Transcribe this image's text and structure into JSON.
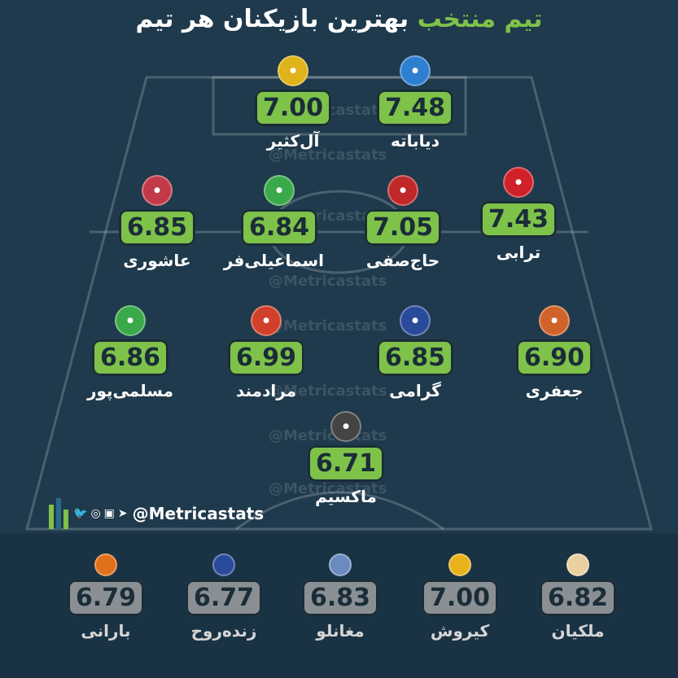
{
  "title": {
    "highlight": "تیم منتخب",
    "rest": "بهترین بازیکنان هر تیم"
  },
  "watermark": "@Metricastats",
  "handle": "@Metricastats",
  "social_icons": [
    "twitter-icon",
    "globe-icon",
    "instagram-icon",
    "telegram-icon"
  ],
  "starters": [
    {
      "name": "دیاباته",
      "score": "7.48",
      "club_logo": "esteghlal-logo-icon",
      "color": "#2f7fd0"
    },
    {
      "name": "آل‌کثیر",
      "score": "7.00",
      "club_logo": "sanat-naft-logo-icon",
      "color": "#e0b21b"
    },
    {
      "name": "ترابی",
      "score": "7.43",
      "club_logo": "persepolis-logo-icon",
      "color": "#d0202a"
    },
    {
      "name": "حاج‌صفی",
      "score": "7.05",
      "club_logo": "tractor-logo-icon",
      "color": "#c0282a"
    },
    {
      "name": "اسماعیلی‌فر",
      "score": "6.84",
      "club_logo": "zob-ahan-logo-icon",
      "color": "#3aa94a"
    },
    {
      "name": "عاشوری",
      "score": "6.85",
      "club_logo": "mes-rafsanjan-logo-icon",
      "color": "#c23a4a"
    },
    {
      "name": "جعفری",
      "score": "6.90",
      "club_logo": "foolad-logo-icon",
      "color": "#d0632a"
    },
    {
      "name": "گرامی",
      "score": "6.85",
      "club_logo": "malavan-logo-icon",
      "color": "#2a4a9a"
    },
    {
      "name": "مرادمند",
      "score": "6.99",
      "club_logo": "mes-kerman-logo-icon",
      "color": "#d0402a"
    },
    {
      "name": "مسلمی‌پور",
      "score": "6.86",
      "club_logo": "aluminium-logo-icon",
      "color": "#3aa94a"
    },
    {
      "name": "ماکسیم",
      "score": "6.71",
      "club_logo": "havadar-logo-icon",
      "color": "#444444"
    }
  ],
  "bench": [
    {
      "name": "ملکیان",
      "score": "6.82",
      "club_logo": "paykan-logo-icon",
      "color": "#e8d0a0"
    },
    {
      "name": "کیروش",
      "score": "7.00",
      "club_logo": "sepahan-logo-icon",
      "color": "#e8b21b"
    },
    {
      "name": "مغانلو",
      "score": "6.83",
      "club_logo": "gol-gohar-logo-icon",
      "color": "#6a8ac0"
    },
    {
      "name": "زنده‌روح",
      "score": "6.77",
      "club_logo": "esteghlal-khuzestan-logo-icon",
      "color": "#2a4a9a"
    },
    {
      "name": "بارانی",
      "score": "6.79",
      "club_logo": "saipa-logo-icon",
      "color": "#e0701b"
    }
  ]
}
